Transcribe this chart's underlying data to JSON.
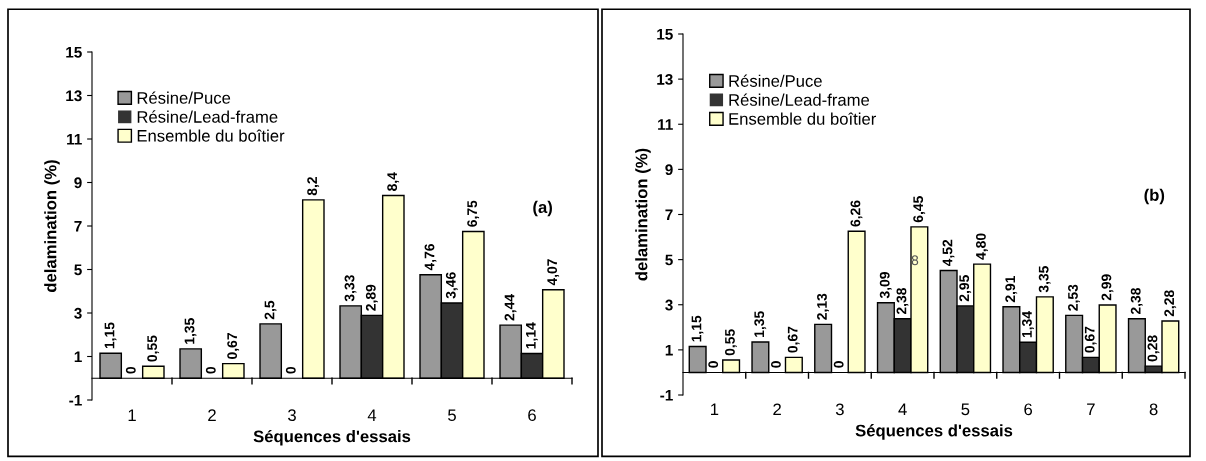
{
  "chart_data": [
    {
      "type": "bar",
      "xlabel": "Séquences d'essais",
      "ylabel": "delamination (%)",
      "categories": [
        "1",
        "2",
        "3",
        "4",
        "5",
        "6"
      ],
      "ylim": [
        -1,
        15
      ],
      "yticks": [
        -1,
        1,
        3,
        5,
        7,
        9,
        11,
        13,
        15
      ],
      "grid": false,
      "legend": "top left",
      "annotations": [
        "(a)"
      ],
      "series": [
        {
          "name": "Résine/Puce",
          "color": "#999999",
          "values": [
            1.15,
            1.35,
            2.5,
            3.33,
            4.76,
            2.44
          ],
          "value_labels": [
            "1,15",
            "1,35",
            "2,5",
            "3,33",
            "4,76",
            "2,44"
          ]
        },
        {
          "name": "Résine/Lead-frame",
          "color": "#333333",
          "values": [
            0,
            0,
            0,
            2.89,
            3.46,
            1.14
          ],
          "value_labels": [
            "0",
            "0",
            "0",
            "2,89",
            "3,46",
            "1,14"
          ]
        },
        {
          "name": "Ensemble du boîtier",
          "color": "#ffffcc",
          "values": [
            0.55,
            0.67,
            8.2,
            8.4,
            6.75,
            4.07
          ],
          "value_labels": [
            "0,55",
            "0,67",
            "8,2",
            "8,4",
            "6,75",
            "4,07"
          ]
        }
      ]
    },
    {
      "type": "bar",
      "xlabel": "Séquences d'essais",
      "ylabel": "delamination (%)",
      "categories": [
        "1",
        "2",
        "3",
        "4",
        "5",
        "6",
        "7",
        "8"
      ],
      "ylim": [
        -1,
        15
      ],
      "yticks": [
        -1,
        1,
        3,
        5,
        7,
        9,
        11,
        13,
        15
      ],
      "grid": false,
      "legend": "top left",
      "annotations": [
        "(b)",
        "8"
      ],
      "series": [
        {
          "name": "Résine/Puce",
          "color": "#999999",
          "values": [
            1.15,
            1.35,
            2.13,
            3.09,
            4.52,
            2.91,
            2.53,
            2.38
          ],
          "value_labels": [
            "1,15",
            "1,35",
            "2,13",
            "3,09",
            "4,52",
            "2,91",
            "2,53",
            "2,38"
          ]
        },
        {
          "name": "Résine/Lead-frame",
          "color": "#333333",
          "values": [
            0,
            0,
            0,
            2.38,
            2.95,
            1.34,
            0.67,
            0.28
          ],
          "value_labels": [
            "0",
            "0",
            "0",
            "2,38",
            "2,95",
            "1,34",
            "0,67",
            "0,28"
          ]
        },
        {
          "name": "Ensemble du boîtier",
          "color": "#ffffcc",
          "values": [
            0.55,
            0.67,
            6.26,
            6.45,
            4.8,
            3.35,
            2.99,
            2.28
          ],
          "value_labels": [
            "0,55",
            "0,67",
            "6,26",
            "6,45",
            "4,80",
            "3,35",
            "2,99",
            "2,28"
          ]
        }
      ]
    }
  ]
}
